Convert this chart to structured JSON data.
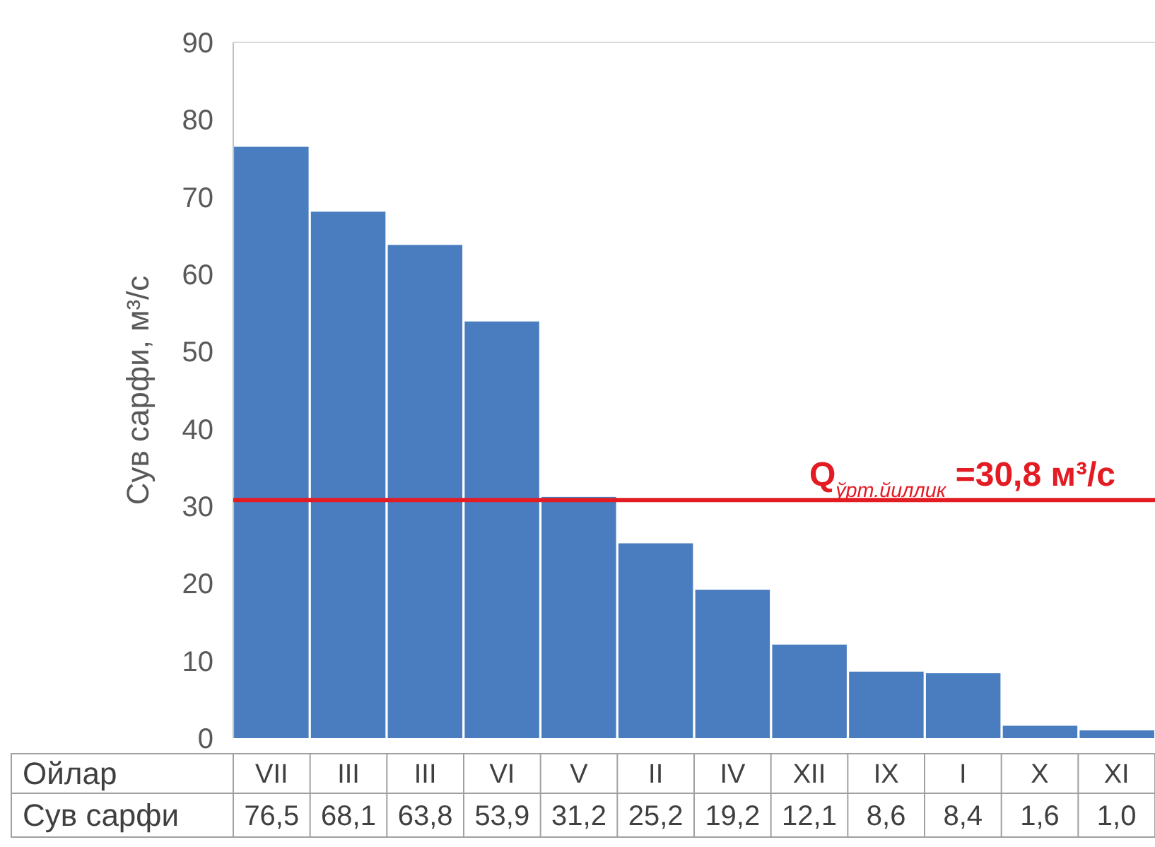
{
  "chart_data": {
    "type": "bar",
    "ylabel": "Сув сарфи, м³/с",
    "xlabel": "Ойлар",
    "annotations": [
      "Сув сарфи"
    ],
    "categories": [
      "VII",
      "III",
      "III",
      "VI",
      "V",
      "II",
      "IV",
      "XII",
      "IX",
      "I",
      "X",
      "XI"
    ],
    "values": [
      76.5,
      68.1,
      63.8,
      53.9,
      31.2,
      25.2,
      19.2,
      12.1,
      8.6,
      8.4,
      1.6,
      1.0
    ],
    "color": "#4a7dbf",
    "value_labels": [
      "76,5",
      "68,1",
      "63,8",
      "53,9",
      "31,2",
      "25,2",
      "19,2",
      "12,1",
      "8,6",
      "8,4",
      "1,6",
      "1,0"
    ],
    "ylim": [
      0,
      90
    ],
    "yticks": [
      0,
      10,
      20,
      30,
      40,
      50,
      60,
      70,
      80,
      90
    ],
    "grid": false,
    "ref_lines": [
      {
        "axis": "y",
        "value": 30.8,
        "label": "Q$_{ўрт.йиллик}$ =30,8 м³/с",
        "color": "#e31b23"
      }
    ]
  }
}
